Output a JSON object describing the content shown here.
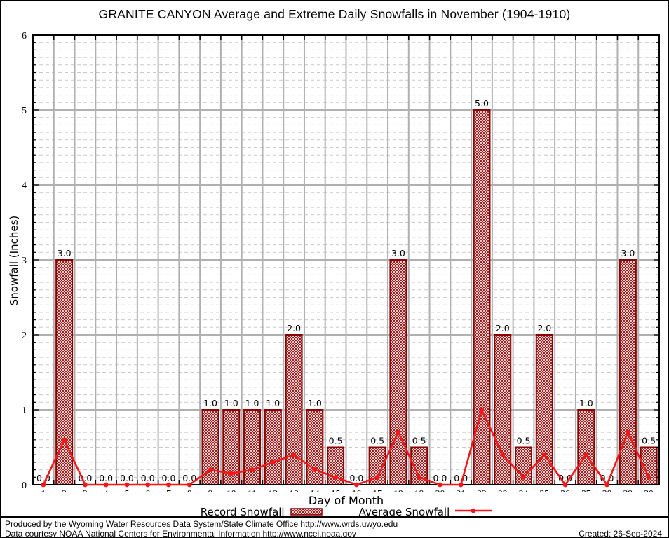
{
  "title": "GRANITE CANYON Average and Extreme Daily Snowfalls in November (1904-1910)",
  "chart_data": {
    "type": "bar",
    "x": [
      1,
      2,
      3,
      4,
      5,
      6,
      7,
      8,
      9,
      10,
      11,
      12,
      13,
      14,
      15,
      16,
      17,
      18,
      19,
      20,
      21,
      22,
      23,
      24,
      25,
      26,
      27,
      28,
      29,
      30
    ],
    "series": [
      {
        "name": "Record Snowfall",
        "type": "bar",
        "values": [
          0.0,
          3.0,
          0.0,
          0.0,
          0.0,
          0.0,
          0.0,
          0.0,
          1.0,
          1.0,
          1.0,
          1.0,
          2.0,
          1.0,
          0.5,
          0.0,
          0.5,
          3.0,
          0.5,
          0.0,
          0.0,
          5.0,
          2.0,
          0.5,
          2.0,
          0.0,
          1.0,
          0.0,
          3.0,
          0.5
        ]
      },
      {
        "name": "Average Snowfall",
        "type": "line",
        "values": [
          0.0,
          0.6,
          0.0,
          0.0,
          0.0,
          0.0,
          0.0,
          0.0,
          0.2,
          0.15,
          0.2,
          0.3,
          0.4,
          0.2,
          0.1,
          0.0,
          0.1,
          0.7,
          0.1,
          0.0,
          0.0,
          1.0,
          0.4,
          0.1,
          0.4,
          0.0,
          0.4,
          0.0,
          0.7,
          0.1
        ]
      }
    ],
    "title": "GRANITE CANYON Average and Extreme Daily Snowfalls in November (1904-1910)",
    "xlabel": "Day of Month",
    "ylabel": "Snowfall (Inches)",
    "ylim": [
      0,
      6
    ],
    "yticks": [
      0,
      1,
      2,
      3,
      4,
      5,
      6
    ],
    "grid": "major solid gray, minor dashed every 0.1",
    "bar_value_labels": true,
    "colors": {
      "bar_border": "#8b0000",
      "bar_hatch": "#8b0000",
      "line": "#f51717",
      "grid_major": "#b0b0b0",
      "grid_minor": "#c9c9c9",
      "axis": "#000000",
      "text": "#000000"
    }
  },
  "footer": {
    "line1": "Produced by the Wyoming Water Resources Data System/State Climate Office http://www.wrds.uwyo.edu",
    "line2": "Data courtesy NOAA National Centers for Environmental Information http://www.ncei.noaa.gov",
    "created": "Created: 26-Sep-2024"
  }
}
